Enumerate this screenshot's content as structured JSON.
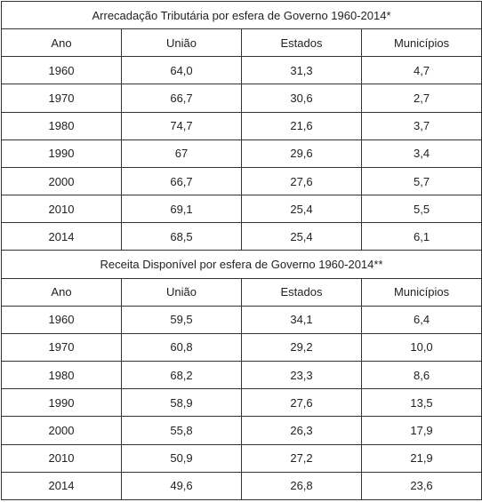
{
  "tables": [
    {
      "title": "Arrecadação Tributária por esfera de Governo 1960-2014*",
      "header": [
        "Ano",
        "União",
        "Estados",
        "Municípios"
      ],
      "rows": [
        [
          "1960",
          "64,0",
          "31,3",
          "4,7"
        ],
        [
          "1970",
          "66,7",
          "30,6",
          "2,7"
        ],
        [
          "1980",
          "74,7",
          "21,6",
          "3,7"
        ],
        [
          "1990",
          "67",
          "29,6",
          "3,4"
        ],
        [
          "2000",
          "66,7",
          "27,6",
          "5,7"
        ],
        [
          "2010",
          "69,1",
          "25,4",
          "5,5"
        ],
        [
          "2014",
          "68,5",
          "25,4",
          "6,1"
        ]
      ]
    },
    {
      "title": "Receita Disponível por esfera de Governo 1960-2014**",
      "header": [
        "Ano",
        "União",
        "Estados",
        "Municípios"
      ],
      "rows": [
        [
          "1960",
          "59,5",
          "34,1",
          "6,4"
        ],
        [
          "1970",
          "60,8",
          "29,2",
          "10,0"
        ],
        [
          "1980",
          "68,2",
          "23,3",
          "8,6"
        ],
        [
          "1990",
          "58,9",
          "27,6",
          "13,5"
        ],
        [
          "2000",
          "55,8",
          "26,3",
          "17,9"
        ],
        [
          "2010",
          "50,9",
          "27,2",
          "21,9"
        ],
        [
          "2014",
          "49,6",
          "26,8",
          "23,6"
        ]
      ]
    }
  ]
}
